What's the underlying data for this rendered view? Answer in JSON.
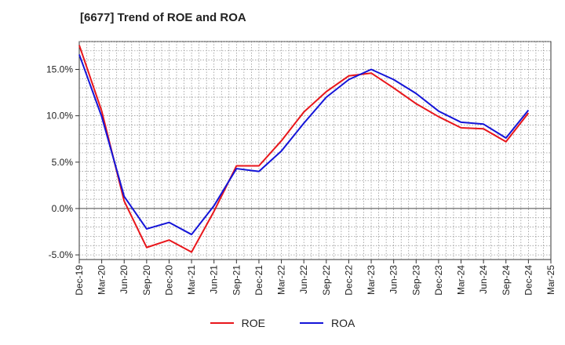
{
  "chart_data": {
    "type": "line",
    "title": "[6677]  Trend of ROE and ROA",
    "xlabel": "",
    "ylabel": "",
    "x": [
      "Dec-19",
      "Mar-20",
      "Jun-20",
      "Sep-20",
      "Dec-20",
      "Mar-21",
      "Jun-21",
      "Sep-21",
      "Dec-21",
      "Mar-22",
      "Jun-22",
      "Sep-22",
      "Dec-22",
      "Mar-23",
      "Jun-23",
      "Sep-23",
      "Dec-23",
      "Mar-24",
      "Jun-24",
      "Sep-24",
      "Dec-24",
      "Mar-25"
    ],
    "ylim": [
      -5.5,
      18.0
    ],
    "yticks": [
      -5.0,
      0.0,
      5.0,
      10.0,
      15.0
    ],
    "ytick_labels": [
      "-5.0%",
      "0.0%",
      "5.0%",
      "10.0%",
      "15.0%"
    ],
    "grid": true,
    "legend_position": "bottom-center",
    "series": [
      {
        "name": "ROE",
        "color": "#e8161b",
        "values": [
          17.6,
          10.5,
          0.8,
          -4.2,
          -3.4,
          -4.7,
          -0.3,
          4.6,
          4.6,
          7.3,
          10.4,
          12.6,
          14.3,
          14.6,
          13.0,
          11.3,
          9.9,
          8.7,
          8.6,
          7.2,
          10.3,
          null
        ]
      },
      {
        "name": "ROA",
        "color": "#1414d8",
        "values": [
          16.6,
          9.9,
          1.3,
          -2.2,
          -1.5,
          -2.8,
          0.3,
          4.3,
          4.0,
          6.2,
          9.2,
          12.0,
          13.9,
          15.0,
          13.9,
          12.4,
          10.5,
          9.3,
          9.1,
          7.6,
          10.6,
          null
        ]
      }
    ]
  }
}
